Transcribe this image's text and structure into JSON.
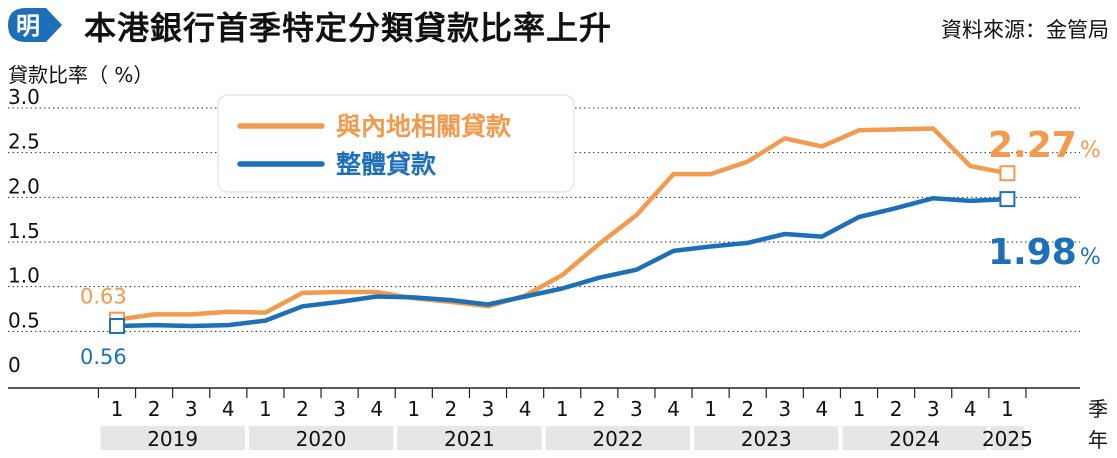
{
  "header": {
    "logo_text": "明",
    "title": "本港銀行首季特定分類貸款比率上升",
    "source": "資料來源：金管局"
  },
  "colors": {
    "orange": "#f39a4e",
    "blue": "#1d70b7",
    "logo_blue": "#1d70b7",
    "band_gray": "#e6e6e6"
  },
  "chart_data": {
    "type": "line",
    "ylabel": "貸款比率（ %）",
    "ylim": [
      0,
      3.0
    ],
    "yticks": [
      "3.0",
      "2.5",
      "2.0",
      "1.5",
      "1.0",
      "0.5",
      "0"
    ],
    "ytick_values": [
      3.0,
      2.5,
      2.0,
      1.5,
      1.0,
      0.5,
      0
    ],
    "x_quarter_label": "季",
    "x_year_label": "年",
    "quarters": [
      "1",
      "2",
      "3",
      "4",
      "1",
      "2",
      "3",
      "4",
      "1",
      "2",
      "3",
      "4",
      "1",
      "2",
      "3",
      "4",
      "1",
      "2",
      "3",
      "4",
      "1",
      "2",
      "3",
      "4",
      "1"
    ],
    "years": [
      "2019",
      "2020",
      "2021",
      "2022",
      "2023",
      "2024",
      "2025"
    ],
    "years_quarter_count": [
      4,
      4,
      4,
      4,
      4,
      4,
      1
    ],
    "legend": "top-left",
    "series": [
      {
        "name": "與內地相關貸款",
        "color": "#f39a4e",
        "values": [
          0.63,
          0.69,
          0.69,
          0.72,
          0.71,
          0.93,
          0.94,
          0.94,
          0.87,
          0.83,
          0.78,
          0.9,
          1.13,
          1.48,
          1.8,
          2.26,
          2.26,
          2.4,
          2.66,
          2.57,
          2.75,
          2.76,
          2.77,
          2.35,
          2.27
        ],
        "start_label": "0.63",
        "end_label": "2.27",
        "unit": "%"
      },
      {
        "name": "整體貸款",
        "color": "#1d70b7",
        "values": [
          0.56,
          0.57,
          0.56,
          0.57,
          0.62,
          0.78,
          0.83,
          0.89,
          0.88,
          0.85,
          0.8,
          0.89,
          0.98,
          1.1,
          1.19,
          1.4,
          1.45,
          1.49,
          1.59,
          1.56,
          1.78,
          1.88,
          1.99,
          1.96,
          1.98
        ],
        "start_label": "0.56",
        "end_label": "1.98",
        "unit": "%"
      }
    ]
  }
}
